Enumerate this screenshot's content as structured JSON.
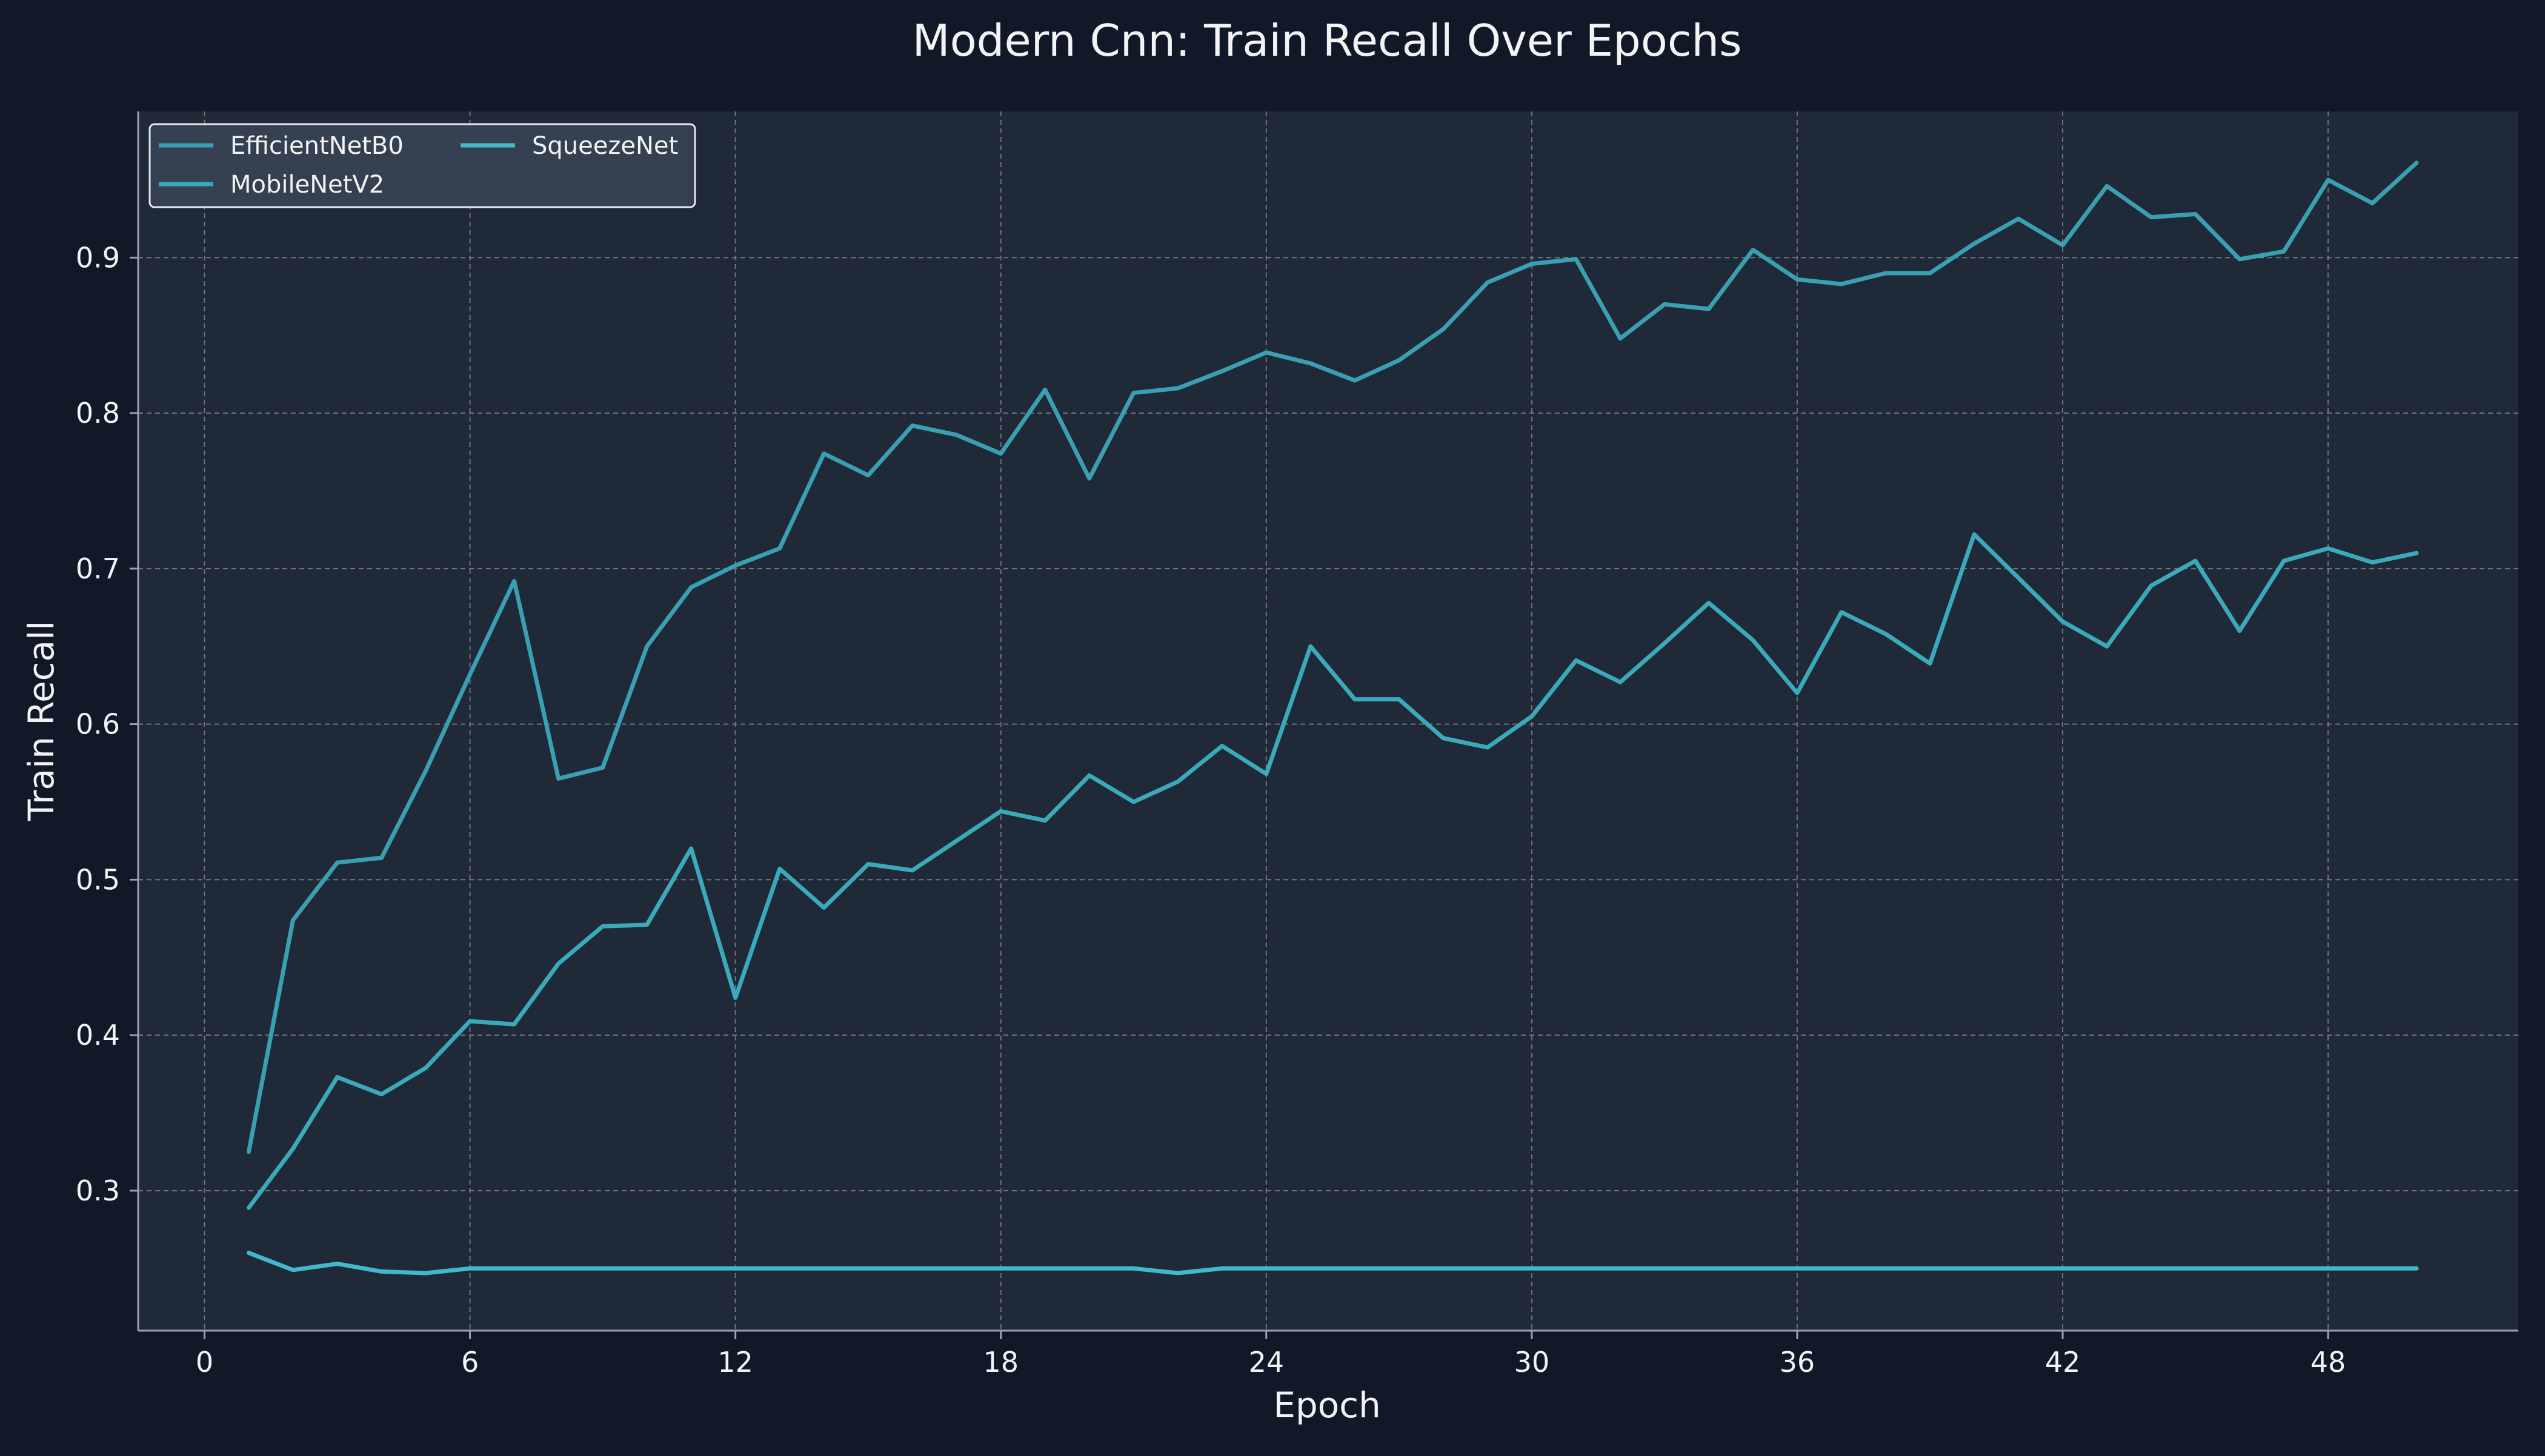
{
  "chart_data": {
    "type": "line",
    "title": "Modern Cnn: Train Recall Over Epochs",
    "xlabel": "Epoch",
    "ylabel": "Train Recall",
    "xlim": [
      -1.5,
      52.3
    ],
    "ylim": [
      0.21,
      0.994
    ],
    "xticks": [
      0,
      6,
      12,
      18,
      24,
      30,
      36,
      42,
      48
    ],
    "yticks": [
      0.3,
      0.4,
      0.5,
      0.6,
      0.7,
      0.8,
      0.9
    ],
    "ytick_labels": [
      "0.3",
      "0.4",
      "0.5",
      "0.6",
      "0.7",
      "0.8",
      "0.9"
    ],
    "grid": true,
    "legend_position": "top-left",
    "x": [
      1,
      2,
      3,
      4,
      5,
      6,
      7,
      8,
      9,
      10,
      11,
      12,
      13,
      14,
      15,
      16,
      17,
      18,
      19,
      20,
      21,
      22,
      23,
      24,
      25,
      26,
      27,
      28,
      29,
      30,
      31,
      32,
      33,
      34,
      35,
      36,
      37,
      38,
      39,
      40,
      41,
      42,
      43,
      44,
      45,
      46,
      47,
      48,
      49,
      50
    ],
    "series": [
      {
        "name": "EfficientNetB0",
        "color": "#3a9fb0",
        "values": [
          0.325,
          0.474,
          0.511,
          0.514,
          0.57,
          0.632,
          0.692,
          0.565,
          0.572,
          0.65,
          0.688,
          0.702,
          0.713,
          0.774,
          0.76,
          0.792,
          0.786,
          0.774,
          0.815,
          0.758,
          0.813,
          0.816,
          0.827,
          0.839,
          0.832,
          0.821,
          0.834,
          0.854,
          0.884,
          0.896,
          0.899,
          0.848,
          0.87,
          0.867,
          0.905,
          0.886,
          0.883,
          0.89,
          0.89,
          0.909,
          0.925,
          0.908,
          0.946,
          0.926,
          0.928,
          0.899,
          0.904,
          0.95,
          0.935,
          0.961
        ]
      },
      {
        "name": "MobileNetV2",
        "color": "#3aaabb",
        "values": [
          0.289,
          0.327,
          0.373,
          0.362,
          0.379,
          0.409,
          0.407,
          0.446,
          0.47,
          0.471,
          0.52,
          0.424,
          0.507,
          0.482,
          0.51,
          0.506,
          0.525,
          0.544,
          0.538,
          0.567,
          0.55,
          0.563,
          0.586,
          0.568,
          0.65,
          0.616,
          0.616,
          0.591,
          0.585,
          0.605,
          0.641,
          0.627,
          0.652,
          0.678,
          0.654,
          0.62,
          0.672,
          0.658,
          0.639,
          0.722,
          0.694,
          0.666,
          0.65,
          0.689,
          0.705,
          0.66,
          0.705,
          0.713,
          0.704,
          0.71
        ]
      },
      {
        "name": "SqueezeNet",
        "color": "#42b8cc",
        "values": [
          0.26,
          0.249,
          0.253,
          0.248,
          0.247,
          0.25,
          0.25,
          0.25,
          0.25,
          0.25,
          0.25,
          0.25,
          0.25,
          0.25,
          0.25,
          0.25,
          0.25,
          0.25,
          0.25,
          0.25,
          0.25,
          0.247,
          0.25,
          0.25,
          0.25,
          0.25,
          0.25,
          0.25,
          0.25,
          0.25,
          0.25,
          0.25,
          0.25,
          0.25,
          0.25,
          0.25,
          0.25,
          0.25,
          0.25,
          0.25,
          0.25,
          0.25,
          0.25,
          0.25,
          0.25,
          0.25,
          0.25,
          0.25,
          0.25,
          0.25
        ]
      }
    ]
  },
  "colors": {
    "page_background": "#111827",
    "plot_background": "#1f2937",
    "text": "#f3f4f6",
    "grid": "#8a8f98",
    "legend_background": "#374151"
  }
}
